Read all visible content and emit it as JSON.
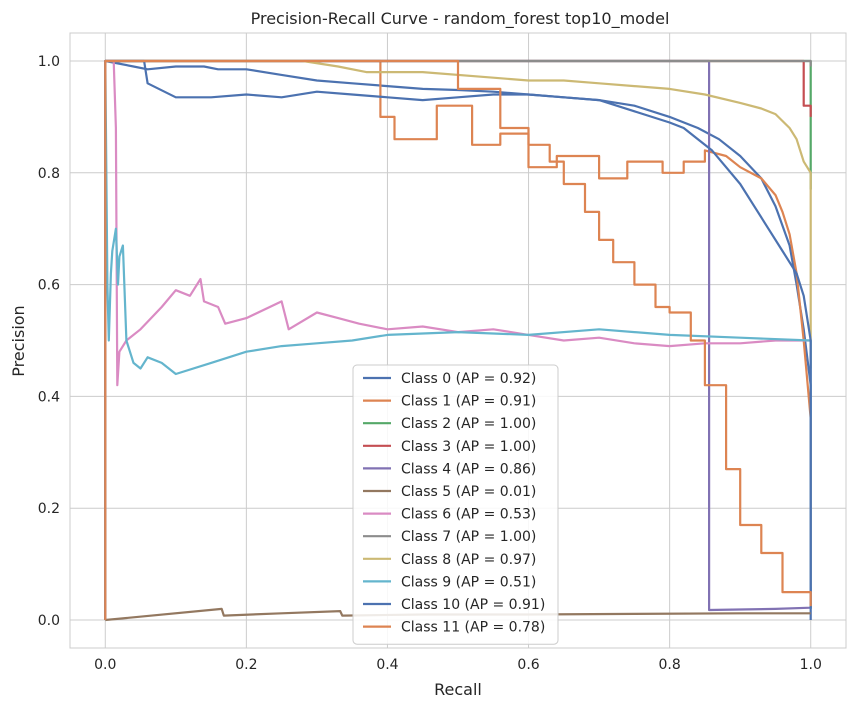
{
  "chart_data": {
    "type": "line",
    "title": "Precision-Recall Curve - random_forest top10_model",
    "xlabel": "Recall",
    "ylabel": "Precision",
    "xlim": [
      -0.05,
      1.05
    ],
    "ylim": [
      -0.05,
      1.05
    ],
    "xticks": [
      0.0,
      0.2,
      0.4,
      0.6,
      0.8,
      1.0
    ],
    "xtick_labels": [
      "0.0",
      "0.2",
      "0.4",
      "0.6",
      "0.8",
      "1.0"
    ],
    "yticks": [
      0.0,
      0.2,
      0.4,
      0.6,
      0.8,
      1.0
    ],
    "ytick_labels": [
      "0.0",
      "0.2",
      "0.4",
      "0.6",
      "0.8",
      "1.0"
    ],
    "grid": true,
    "legend_position": "bottom-center",
    "series": [
      {
        "name": "Class 0 (AP = 0.92)",
        "color": "#4c72b0",
        "x": [
          0,
          0,
          0.04,
          0.06,
          0.1,
          0.14,
          0.16,
          0.2,
          0.25,
          0.3,
          0.35,
          0.4,
          0.45,
          0.5,
          0.55,
          0.6,
          0.65,
          0.7,
          0.75,
          0.8,
          0.84,
          0.87,
          0.9,
          0.93,
          0.95,
          0.97,
          0.98,
          0.99,
          1.0,
          1.0
        ],
        "y": [
          0,
          1,
          0.99,
          0.985,
          0.99,
          0.99,
          0.985,
          0.985,
          0.975,
          0.965,
          0.96,
          0.955,
          0.95,
          0.948,
          0.945,
          0.94,
          0.935,
          0.93,
          0.92,
          0.9,
          0.88,
          0.86,
          0.83,
          0.79,
          0.74,
          0.67,
          0.6,
          0.52,
          0.42,
          0
        ]
      },
      {
        "name": "Class 1 (AP = 0.91)",
        "color": "#dd8452",
        "x": [
          0,
          0,
          0.39,
          0.39,
          0.41,
          0.41,
          0.47,
          0.47,
          0.52,
          0.52,
          0.56,
          0.56,
          0.6,
          0.6,
          0.64,
          0.64,
          0.7,
          0.7,
          0.74,
          0.74,
          0.79,
          0.79,
          0.82,
          0.82,
          0.85,
          0.85,
          0.88,
          0.9,
          0.93,
          0.95,
          0.96,
          0.97,
          0.98,
          0.99,
          1.0,
          1.0
        ],
        "y": [
          0,
          1,
          1,
          0.9,
          0.9,
          0.86,
          0.86,
          0.92,
          0.92,
          0.85,
          0.85,
          0.87,
          0.87,
          0.81,
          0.81,
          0.83,
          0.83,
          0.79,
          0.79,
          0.82,
          0.82,
          0.8,
          0.8,
          0.82,
          0.82,
          0.84,
          0.83,
          0.81,
          0.79,
          0.76,
          0.73,
          0.69,
          0.62,
          0.5,
          0.36,
          0.03
        ]
      },
      {
        "name": "Class 2 (AP = 1.00)",
        "color": "#55a868",
        "x": [
          0,
          0,
          0.995,
          1.0,
          1.0
        ],
        "y": [
          0,
          1,
          1,
          1,
          0.77
        ]
      },
      {
        "name": "Class 3 (AP = 1.00)",
        "color": "#c44e52",
        "x": [
          0,
          0,
          0.99,
          0.99,
          1.0,
          1.0
        ],
        "y": [
          0,
          1,
          1,
          0.92,
          0.92,
          0.9
        ]
      },
      {
        "name": "Class 4 (AP = 0.86)",
        "color": "#8172b3",
        "x": [
          0,
          0,
          0.856,
          0.856,
          0.95,
          1.0,
          1.0
        ],
        "y": [
          0,
          1,
          1,
          0.018,
          0.02,
          0.022,
          0.06
        ]
      },
      {
        "name": "Class 5 (AP = 0.01)",
        "color": "#937860",
        "x": [
          0,
          0.165,
          0.168,
          0.25,
          0.333,
          0.336,
          0.45,
          0.6,
          0.75,
          0.9,
          1.0
        ],
        "y": [
          0,
          0.02,
          0.008,
          0.012,
          0.016,
          0.008,
          0.01,
          0.01,
          0.011,
          0.012,
          0.012
        ]
      },
      {
        "name": "Class 6 (AP = 0.53)",
        "color": "#da8bc3",
        "x": [
          0,
          0,
          0.012,
          0.015,
          0.017,
          0.02,
          0.03,
          0.05,
          0.08,
          0.1,
          0.12,
          0.135,
          0.14,
          0.16,
          0.17,
          0.2,
          0.25,
          0.26,
          0.3,
          0.33,
          0.36,
          0.4,
          0.45,
          0.5,
          0.55,
          0.6,
          0.65,
          0.7,
          0.75,
          0.8,
          0.85,
          0.9,
          0.95,
          1.0
        ],
        "y": [
          0,
          1,
          1,
          0.88,
          0.42,
          0.48,
          0.5,
          0.52,
          0.56,
          0.59,
          0.58,
          0.61,
          0.57,
          0.56,
          0.53,
          0.54,
          0.57,
          0.52,
          0.55,
          0.54,
          0.53,
          0.52,
          0.525,
          0.515,
          0.52,
          0.51,
          0.5,
          0.505,
          0.495,
          0.49,
          0.495,
          0.495,
          0.5,
          0.5
        ]
      },
      {
        "name": "Class 7 (AP = 1.00)",
        "color": "#8c8c8c",
        "x": [
          0,
          0,
          1.0,
          1.0
        ],
        "y": [
          0,
          1,
          1,
          0.99
        ]
      },
      {
        "name": "Class 8 (AP = 0.97)",
        "color": "#ccb974",
        "x": [
          0,
          0,
          0.28,
          0.33,
          0.37,
          0.45,
          0.55,
          0.6,
          0.65,
          0.7,
          0.75,
          0.8,
          0.85,
          0.9,
          0.93,
          0.95,
          0.97,
          0.98,
          0.99,
          1.0,
          1.0,
          1.0
        ],
        "y": [
          0,
          1,
          1,
          0.99,
          0.98,
          0.98,
          0.97,
          0.965,
          0.965,
          0.96,
          0.955,
          0.95,
          0.94,
          0.925,
          0.915,
          0.905,
          0.88,
          0.86,
          0.82,
          0.8,
          0.6,
          0.45
        ]
      },
      {
        "name": "Class 9 (AP = 0.51)",
        "color": "#64b5cd",
        "x": [
          0,
          0,
          0.003,
          0.005,
          0.008,
          0.01,
          0.015,
          0.018,
          0.02,
          0.025,
          0.03,
          0.04,
          0.05,
          0.06,
          0.08,
          0.1,
          0.15,
          0.2,
          0.25,
          0.3,
          0.35,
          0.4,
          0.5,
          0.6,
          0.7,
          0.8,
          0.9,
          1.0,
          1.0
        ],
        "y": [
          0,
          1,
          0.6,
          0.5,
          0.62,
          0.66,
          0.7,
          0.6,
          0.65,
          0.67,
          0.5,
          0.46,
          0.45,
          0.47,
          0.46,
          0.44,
          0.46,
          0.48,
          0.49,
          0.495,
          0.5,
          0.51,
          0.515,
          0.51,
          0.52,
          0.51,
          0.505,
          0.5,
          0.02
        ]
      },
      {
        "name": "Class 10 (AP = 0.91)",
        "color": "#4c72b0",
        "x": [
          0,
          0,
          0.055,
          0.06,
          0.1,
          0.15,
          0.2,
          0.25,
          0.3,
          0.35,
          0.4,
          0.45,
          0.5,
          0.55,
          0.6,
          0.65,
          0.7,
          0.75,
          0.8,
          0.82,
          0.84,
          0.86,
          0.88,
          0.9,
          0.92,
          0.94,
          0.96,
          0.98,
          0.99,
          1.0,
          1.0
        ],
        "y": [
          0,
          1,
          1,
          0.96,
          0.935,
          0.935,
          0.94,
          0.935,
          0.945,
          0.94,
          0.935,
          0.93,
          0.935,
          0.94,
          0.94,
          0.935,
          0.93,
          0.91,
          0.89,
          0.88,
          0.86,
          0.84,
          0.81,
          0.78,
          0.74,
          0.7,
          0.66,
          0.62,
          0.58,
          0.5,
          0.02
        ]
      },
      {
        "name": "Class 11 (AP = 0.78)",
        "color": "#dd8452",
        "x": [
          0,
          0,
          0.5,
          0.5,
          0.56,
          0.56,
          0.6,
          0.6,
          0.63,
          0.63,
          0.65,
          0.65,
          0.68,
          0.68,
          0.7,
          0.7,
          0.72,
          0.72,
          0.75,
          0.75,
          0.78,
          0.78,
          0.8,
          0.8,
          0.83,
          0.83,
          0.85,
          0.85,
          0.88,
          0.88,
          0.9,
          0.9,
          0.93,
          0.93,
          0.96,
          0.96,
          1.0,
          1.0
        ],
        "y": [
          0,
          1,
          1,
          0.95,
          0.95,
          0.88,
          0.88,
          0.85,
          0.85,
          0.82,
          0.82,
          0.78,
          0.78,
          0.73,
          0.73,
          0.68,
          0.68,
          0.64,
          0.64,
          0.6,
          0.6,
          0.56,
          0.56,
          0.55,
          0.55,
          0.5,
          0.5,
          0.42,
          0.42,
          0.27,
          0.27,
          0.17,
          0.17,
          0.12,
          0.12,
          0.05,
          0.05,
          0.025
        ]
      }
    ]
  }
}
